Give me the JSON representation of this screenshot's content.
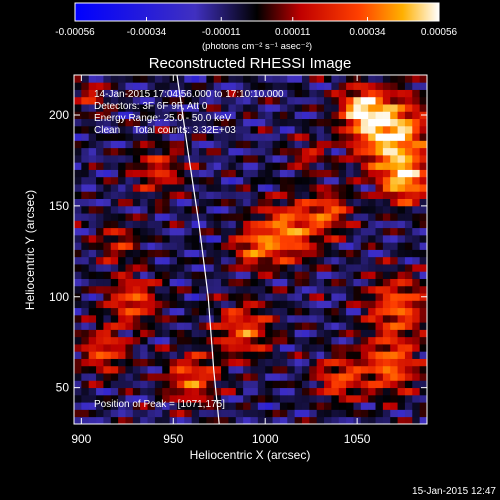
{
  "chart_data": {
    "type": "heatmap",
    "title": "Reconstructed RHESSI Image",
    "xlabel": "Heliocentric X (arcsec)",
    "ylabel": "Heliocentric Y (arcsec)",
    "xlim": [
      896,
      1088
    ],
    "ylim": [
      30,
      222
    ],
    "x_ticks": [
      "900",
      "950",
      "1000",
      "1050"
    ],
    "x_tick_values": [
      900,
      950,
      1000,
      1050
    ],
    "y_ticks": [
      "50",
      "100",
      "150",
      "200"
    ],
    "y_tick_values": [
      50,
      100,
      150,
      200
    ],
    "colorbar": {
      "ticks": [
        "-0.00056",
        "-0.00034",
        "-0.00011",
        "0.00011",
        "0.00034",
        "0.00056"
      ],
      "tick_values": [
        -0.00056,
        -0.00034,
        -0.00011,
        0.00011,
        0.00034,
        0.00056
      ],
      "range": [
        -0.00056,
        0.00056
      ],
      "units_label": "(photons cm⁻² s⁻¹ asec⁻²)"
    },
    "annotations": [
      "14-Jan-2015 17:04:56.000 to 17:10:10.000",
      "Detectors: 3F 6F 9F, Att 0",
      "Energy Range: 25.0 - 50.0 keV",
      "Clean     Total counts: 3.32E+03",
      "Position of Peak = [1071,175]"
    ],
    "peak": {
      "x": 1071,
      "y": 175
    },
    "limb_curve": {
      "x": [
        952,
        958,
        964,
        969,
        972,
        975
      ],
      "y": [
        222,
        180,
        140,
        100,
        60,
        30
      ]
    },
    "sources": [
      {
        "x": 1068,
        "y": 190,
        "sigma": 14,
        "amp": 1.0
      },
      {
        "x": 1052,
        "y": 204,
        "sigma": 8,
        "amp": 0.75
      },
      {
        "x": 1076,
        "y": 164,
        "sigma": 9,
        "amp": 0.8
      },
      {
        "x": 1012,
        "y": 136,
        "sigma": 12,
        "amp": 0.72
      },
      {
        "x": 1035,
        "y": 147,
        "sigma": 8,
        "amp": 0.55
      },
      {
        "x": 993,
        "y": 127,
        "sigma": 8,
        "amp": 0.5
      },
      {
        "x": 1072,
        "y": 95,
        "sigma": 12,
        "amp": 0.62
      },
      {
        "x": 1068,
        "y": 62,
        "sigma": 11,
        "amp": 0.65
      },
      {
        "x": 1040,
        "y": 55,
        "sigma": 9,
        "amp": 0.55
      },
      {
        "x": 988,
        "y": 82,
        "sigma": 11,
        "amp": 0.58
      },
      {
        "x": 960,
        "y": 55,
        "sigma": 10,
        "amp": 0.6
      },
      {
        "x": 928,
        "y": 98,
        "sigma": 10,
        "amp": 0.58
      },
      {
        "x": 912,
        "y": 70,
        "sigma": 9,
        "amp": 0.55
      },
      {
        "x": 942,
        "y": 170,
        "sigma": 10,
        "amp": 0.45
      },
      {
        "x": 920,
        "y": 130,
        "sigma": 8,
        "amp": 0.4
      },
      {
        "x": 1023,
        "y": 178,
        "sigma": 7,
        "amp": 0.35
      },
      {
        "x": 905,
        "y": 210,
        "sigma": 7,
        "amp": 0.35
      }
    ]
  },
  "footer": {
    "timestamp": "15-Jan-2015 12:47"
  }
}
